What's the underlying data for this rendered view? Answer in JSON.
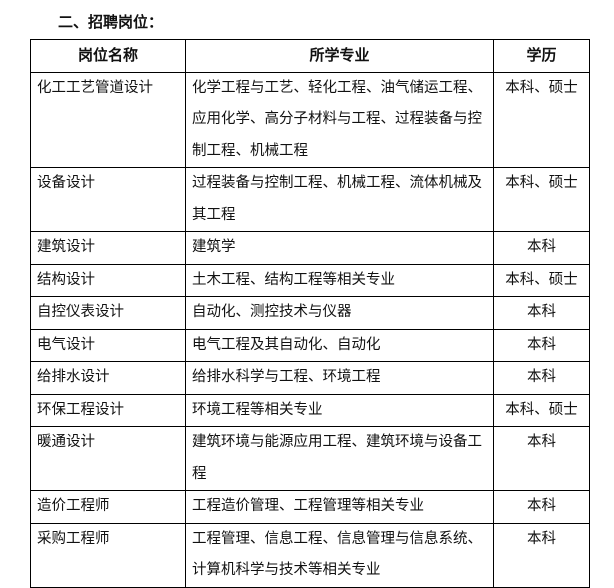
{
  "section_heading": "二、招聘岗位：",
  "table": {
    "headers": [
      "岗位名称",
      "所学专业",
      "学历"
    ],
    "rows": [
      {
        "position": "化工工艺管道设计",
        "major": "化学工程与工艺、轻化工程、油气储运工程、应用化学、高分子材料与工程、过程装备与控制工程、机械工程",
        "education": "本科、硕士"
      },
      {
        "position": "设备设计",
        "major": "过程装备与控制工程、机械工程、流体机械及其工程",
        "education": "本科、硕士"
      },
      {
        "position": "建筑设计",
        "major": "建筑学",
        "education": "本科"
      },
      {
        "position": "结构设计",
        "major": "土木工程、结构工程等相关专业",
        "education": "本科、硕士"
      },
      {
        "position": "自控仪表设计",
        "major": "自动化、测控技术与仪器",
        "education": "本科"
      },
      {
        "position": "电气设计",
        "major": "电气工程及其自动化、自动化",
        "education": "本科"
      },
      {
        "position": "给排水设计",
        "major": "给排水科学与工程、环境工程",
        "education": "本科"
      },
      {
        "position": "环保工程设计",
        "major": "环境工程等相关专业",
        "education": "本科、硕士"
      },
      {
        "position": "暖通设计",
        "major": "建筑环境与能源应用工程、建筑环境与设备工程",
        "education": "本科"
      },
      {
        "position": "造价工程师",
        "major": "工程造价管理、工程管理等相关专业",
        "education": "本科"
      },
      {
        "position": "采购工程师",
        "major": "工程管理、信息工程、信息管理与信息系统、计算机科学与技术等相关专业",
        "education": "本科"
      }
    ]
  }
}
